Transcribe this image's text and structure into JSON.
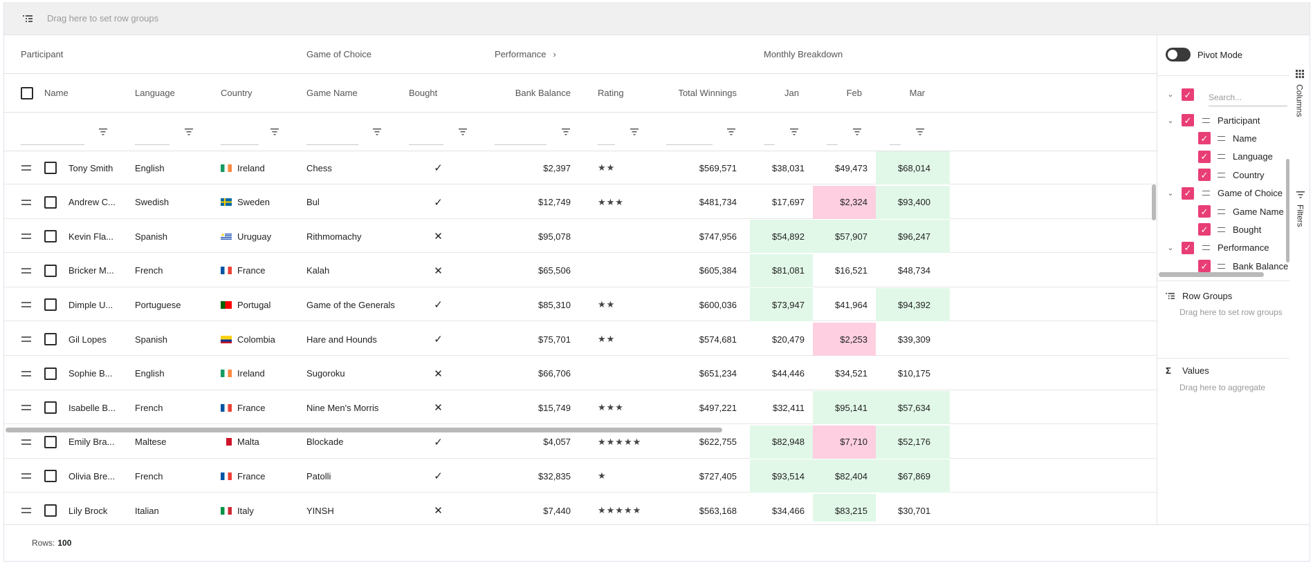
{
  "row_group_bar": {
    "hint": "Drag here to set row groups",
    "icon": "row-group-icon"
  },
  "column_groups": {
    "participant": "Participant",
    "game_of_choice": "Game of Choice",
    "performance": "Performance",
    "performance_chevron": ">",
    "monthly_breakdown": "Monthly Breakdown"
  },
  "columns": {
    "name": "Name",
    "language": "Language",
    "country": "Country",
    "game_name": "Game Name",
    "bought": "Bought",
    "bank_balance": "Bank Balance",
    "rating": "Rating",
    "total_winnings": "Total Winnings",
    "jan": "Jan",
    "feb": "Feb",
    "mar": "Mar"
  },
  "rows": [
    {
      "name": "Tony Smith",
      "language": "English",
      "country": "Ireland",
      "flag": "ie",
      "game": "Chess",
      "bought": "✓",
      "balance": "$2,397",
      "rating": "★★",
      "winnings": "$569,571",
      "jan": "$38,031",
      "jan_s": "",
      "feb": "$49,473",
      "feb_s": "",
      "mar": "$68,014",
      "mar_s": "pos"
    },
    {
      "name": "Andrew C...",
      "language": "Swedish",
      "country": "Sweden",
      "flag": "se",
      "game": "Bul",
      "bought": "✓",
      "balance": "$12,749",
      "rating": "★★★",
      "winnings": "$481,734",
      "jan": "$17,697",
      "jan_s": "",
      "feb": "$2,324",
      "feb_s": "neg",
      "mar": "$93,400",
      "mar_s": "pos"
    },
    {
      "name": "Kevin Fla...",
      "language": "Spanish",
      "country": "Uruguay",
      "flag": "uy",
      "game": "Rithmomachy",
      "bought": "✕",
      "balance": "$95,078",
      "rating": "",
      "winnings": "$747,956",
      "jan": "$54,892",
      "jan_s": "pos",
      "feb": "$57,907",
      "feb_s": "pos",
      "mar": "$96,247",
      "mar_s": "pos"
    },
    {
      "name": "Bricker M...",
      "language": "French",
      "country": "France",
      "flag": "fr",
      "game": "Kalah",
      "bought": "✕",
      "balance": "$65,506",
      "rating": "",
      "winnings": "$605,384",
      "jan": "$81,081",
      "jan_s": "pos",
      "feb": "$16,521",
      "feb_s": "",
      "mar": "$48,734",
      "mar_s": ""
    },
    {
      "name": "Dimple U...",
      "language": "Portuguese",
      "country": "Portugal",
      "flag": "pt",
      "game": "Game of the Generals",
      "bought": "✓",
      "balance": "$85,310",
      "rating": "★★",
      "winnings": "$600,036",
      "jan": "$73,947",
      "jan_s": "pos",
      "feb": "$41,964",
      "feb_s": "",
      "mar": "$94,392",
      "mar_s": "pos"
    },
    {
      "name": "Gil Lopes",
      "language": "Spanish",
      "country": "Colombia",
      "flag": "co",
      "game": "Hare and Hounds",
      "bought": "✓",
      "balance": "$75,701",
      "rating": "★★",
      "winnings": "$574,681",
      "jan": "$20,479",
      "jan_s": "",
      "feb": "$2,253",
      "feb_s": "neg",
      "mar": "$39,309",
      "mar_s": ""
    },
    {
      "name": "Sophie B...",
      "language": "English",
      "country": "Ireland",
      "flag": "ie",
      "game": "Sugoroku",
      "bought": "✕",
      "balance": "$66,706",
      "rating": "",
      "winnings": "$651,234",
      "jan": "$44,446",
      "jan_s": "",
      "feb": "$34,521",
      "feb_s": "",
      "mar": "$10,175",
      "mar_s": ""
    },
    {
      "name": "Isabelle B...",
      "language": "French",
      "country": "France",
      "flag": "fr",
      "game": "Nine Men's Morris",
      "bought": "✕",
      "balance": "$15,749",
      "rating": "★★★",
      "winnings": "$497,221",
      "jan": "$32,411",
      "jan_s": "",
      "feb": "$95,141",
      "feb_s": "pos",
      "mar": "$57,634",
      "mar_s": "pos"
    },
    {
      "name": "Emily Bra...",
      "language": "Maltese",
      "country": "Malta",
      "flag": "mt",
      "game": "Blockade",
      "bought": "✓",
      "balance": "$4,057",
      "rating": "★★★★★",
      "winnings": "$622,755",
      "jan": "$82,948",
      "jan_s": "pos",
      "feb": "$7,710",
      "feb_s": "neg",
      "mar": "$52,176",
      "mar_s": "pos"
    },
    {
      "name": "Olivia Bre...",
      "language": "French",
      "country": "France",
      "flag": "fr",
      "game": "Patolli",
      "bought": "✓",
      "balance": "$32,835",
      "rating": "★",
      "winnings": "$727,405",
      "jan": "$93,514",
      "jan_s": "pos",
      "feb": "$82,404",
      "feb_s": "pos",
      "mar": "$67,869",
      "mar_s": "pos"
    },
    {
      "name": "Lily Brock",
      "language": "Italian",
      "country": "Italy",
      "flag": "it",
      "game": "YINSH",
      "bought": "✕",
      "balance": "$7,440",
      "rating": "★★★★★",
      "winnings": "$563,168",
      "jan": "$34,466",
      "jan_s": "",
      "feb": "$83,215",
      "feb_s": "pos",
      "mar": "$30,701",
      "mar_s": ""
    }
  ],
  "status": {
    "rows_label": "Rows:",
    "rows_count": "100"
  },
  "tool_panel": {
    "pivot_mode": "Pivot Mode",
    "search_placeholder": "Search...",
    "tree": [
      {
        "label": "Participant",
        "level": 0
      },
      {
        "label": "Name",
        "level": 1
      },
      {
        "label": "Language",
        "level": 1
      },
      {
        "label": "Country",
        "level": 1
      },
      {
        "label": "Game of Choice",
        "level": 0
      },
      {
        "label": "Game Name",
        "level": 1
      },
      {
        "label": "Bought",
        "level": 1
      },
      {
        "label": "Performance",
        "level": 0
      },
      {
        "label": "Bank Balance",
        "level": 1
      }
    ],
    "row_groups_title": "Row Groups",
    "row_groups_hint": "Drag here to set row groups",
    "values_title": "Values",
    "values_symbol": "Σ",
    "values_hint": "Drag here to aggregate"
  },
  "side_tabs": {
    "columns": "Columns",
    "filters": "Filters"
  },
  "colors": {
    "accent": "#e83e75",
    "positive": "#e1f8e8",
    "negative": "#fdcfe0",
    "tab_active": "#2b3fd8"
  }
}
